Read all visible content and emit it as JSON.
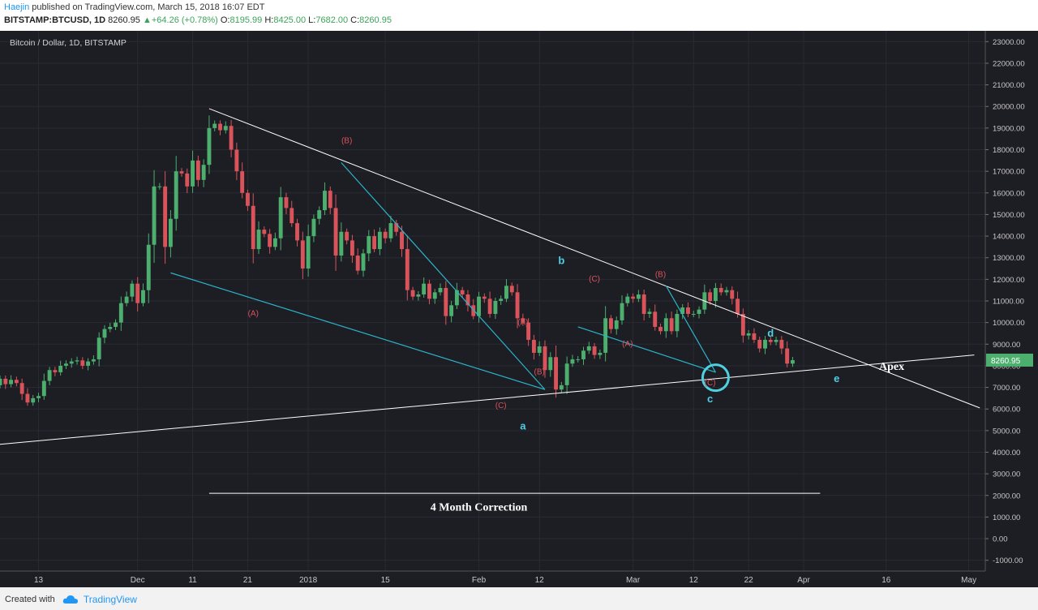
{
  "header": {
    "author": "Haejin",
    "published": "published on TradingView.com, March 15, 2018 16:07 EDT",
    "symbol": "BITSTAMP:BTCUSD, 1D",
    "last": "8260.95",
    "change": "+64.26 (+0.78%)",
    "open_label": "O:",
    "open": "8195.99",
    "high_label": "H:",
    "high": "8425.00",
    "low_label": "L:",
    "low": "7682.00",
    "close_label": "C:",
    "close": "8260.95"
  },
  "footer": {
    "created_with": "Created with",
    "brand": "TradingView"
  },
  "colors": {
    "background": "#1d1d24",
    "up": "#4caf6e",
    "down": "#d9535b",
    "trend": "#ffffff",
    "channel": "#2bb5c8",
    "label_red": "#d9535b",
    "label_cyan": "#4dd0e1"
  },
  "chart_data": {
    "type": "candlestick",
    "title": "Bitcoin / Dollar, 1D, BITSTAMP",
    "ylim": [
      -1500,
      23500
    ],
    "y_ticks": [
      "-1000.00",
      "0.00",
      "1000.00",
      "2000.00",
      "3000.00",
      "4000.00",
      "5000.00",
      "6000.00",
      "7000.00",
      "8000.00",
      "9000.00",
      "10000.00",
      "11000.00",
      "12000.00",
      "13000.00",
      "14000.00",
      "15000.00",
      "16000.00",
      "17000.00",
      "18000.00",
      "19000.00",
      "20000.00",
      "21000.00",
      "22000.00",
      "23000.00"
    ],
    "x_start": "2017-11-06",
    "x_end": "2018-05-04",
    "x_ticks": [
      {
        "label": "13",
        "date": "2017-11-13"
      },
      {
        "label": "Dec",
        "date": "2017-12-01"
      },
      {
        "label": "11",
        "date": "2017-12-11"
      },
      {
        "label": "21",
        "date": "2017-12-21"
      },
      {
        "label": "2018",
        "date": "2018-01-01"
      },
      {
        "label": "15",
        "date": "2018-01-15"
      },
      {
        "label": "Feb",
        "date": "2018-02-01"
      },
      {
        "label": "12",
        "date": "2018-02-12"
      },
      {
        "label": "Mar",
        "date": "2018-03-01"
      },
      {
        "label": "12",
        "date": "2018-03-12"
      },
      {
        "label": "22",
        "date": "2018-03-22"
      },
      {
        "label": "Apr",
        "date": "2018-04-01"
      },
      {
        "label": "16",
        "date": "2018-04-16"
      },
      {
        "label": "May",
        "date": "2018-05-01"
      }
    ],
    "last_price": {
      "label": "8260.95",
      "value": 8260.95
    },
    "candles_start": "2017-11-06",
    "close_start": 7100,
    "closes": [
      7400,
      7150,
      7350,
      7200,
      6700,
      6300,
      6500,
      6600,
      7300,
      7800,
      7700,
      8000,
      8100,
      8200,
      8250,
      8000,
      8200,
      8300,
      9300,
      9700,
      9800,
      10000,
      10900,
      11200,
      11800,
      10900,
      11500,
      13600,
      16300,
      16300,
      13500,
      14800,
      17000,
      16900,
      16300,
      17500,
      16600,
      17300,
      19000,
      19200,
      18900,
      19100,
      18000,
      17000,
      16000,
      15400,
      13400,
      14300,
      14100,
      13500,
      13900,
      15800,
      15300,
      14600,
      13800,
      12500,
      14000,
      14800,
      15200,
      16100,
      15300,
      13100,
      14200,
      13800,
      13100,
      12400,
      13200,
      14000,
      13400,
      14200,
      13900,
      14600,
      14200,
      13400,
      11500,
      11200,
      11300,
      11800,
      11100,
      11400,
      11600,
      10300,
      10800,
      11500,
      11300,
      10800,
      10300,
      11200,
      11100,
      10400,
      11000,
      11100,
      11700,
      11400,
      10200,
      10000,
      9200,
      8600,
      8900,
      7800,
      8400,
      6900,
      7100,
      8100,
      8300,
      8300,
      8700,
      8900,
      8500,
      8600,
      10200,
      9700,
      10100,
      10900,
      11200,
      11100,
      11300,
      10400,
      10500,
      9800,
      9600,
      10200,
      9600,
      10400,
      10700,
      10400,
      10400,
      10600,
      11400,
      11000,
      11600,
      11400,
      11500,
      11100,
      10400,
      9400,
      9500,
      9200,
      8800,
      9200,
      9100,
      9200,
      8800,
      8100,
      8260
    ],
    "annotations": {
      "white_labels": [
        {
          "text": "Apex",
          "date": "2018-04-17",
          "value": 7800
        },
        {
          "text": "4 Month Correction",
          "date": "2018-02-01",
          "value": 1300
        }
      ],
      "red_labels": [
        {
          "text": "(A)",
          "date": "2017-12-22",
          "value": 10300
        },
        {
          "text": "(B)",
          "date": "2018-01-08",
          "value": 18300
        },
        {
          "text": "(C)",
          "date": "2018-02-05",
          "value": 6050
        },
        {
          "text": "(A)",
          "date": "2018-02-09",
          "value": 9900
        },
        {
          "text": "(B)",
          "date": "2018-02-12",
          "value": 7600
        },
        {
          "text": "(C)",
          "date": "2018-02-22",
          "value": 11900
        },
        {
          "text": "(A)",
          "date": "2018-02-28",
          "value": 8900
        },
        {
          "text": "(B)",
          "date": "2018-03-06",
          "value": 12100
        },
        {
          "text": "(C)",
          "date": "2018-03-15",
          "value": 7100
        }
      ],
      "cyan_labels": [
        {
          "text": "a",
          "date": "2018-02-09",
          "value": 5050
        },
        {
          "text": "b",
          "date": "2018-02-16",
          "value": 12700
        },
        {
          "text": "c",
          "date": "2018-03-15",
          "value": 6300
        },
        {
          "text": "d",
          "date": "2018-03-26",
          "value": 9350
        },
        {
          "text": "e",
          "date": "2018-04-07",
          "value": 7250
        }
      ],
      "lines": [
        {
          "color": "trend",
          "from": {
            "date": "2017-12-14",
            "value": 19900
          },
          "to": {
            "date": "2018-05-03",
            "value": 6050
          }
        },
        {
          "color": "trend",
          "from": {
            "date": "2017-10-30",
            "value": 4200
          },
          "to": {
            "date": "2018-05-02",
            "value": 8500
          }
        },
        {
          "color": "trend",
          "from": {
            "date": "2017-12-14",
            "value": 2100
          },
          "to": {
            "date": "2018-04-04",
            "value": 2100
          }
        },
        {
          "color": "channel",
          "from": {
            "date": "2017-12-07",
            "value": 12300
          },
          "to": {
            "date": "2018-02-13",
            "value": 6900
          }
        },
        {
          "color": "channel",
          "from": {
            "date": "2018-01-07",
            "value": 17400
          },
          "to": {
            "date": "2018-02-13",
            "value": 6900
          }
        },
        {
          "color": "channel",
          "from": {
            "date": "2018-02-19",
            "value": 9800
          },
          "to": {
            "date": "2018-03-16",
            "value": 7700
          }
        },
        {
          "color": "channel",
          "from": {
            "date": "2018-03-07",
            "value": 11700
          },
          "to": {
            "date": "2018-03-16",
            "value": 7700
          }
        }
      ],
      "circle": {
        "date": "2018-03-16",
        "value": 7450
      }
    }
  }
}
